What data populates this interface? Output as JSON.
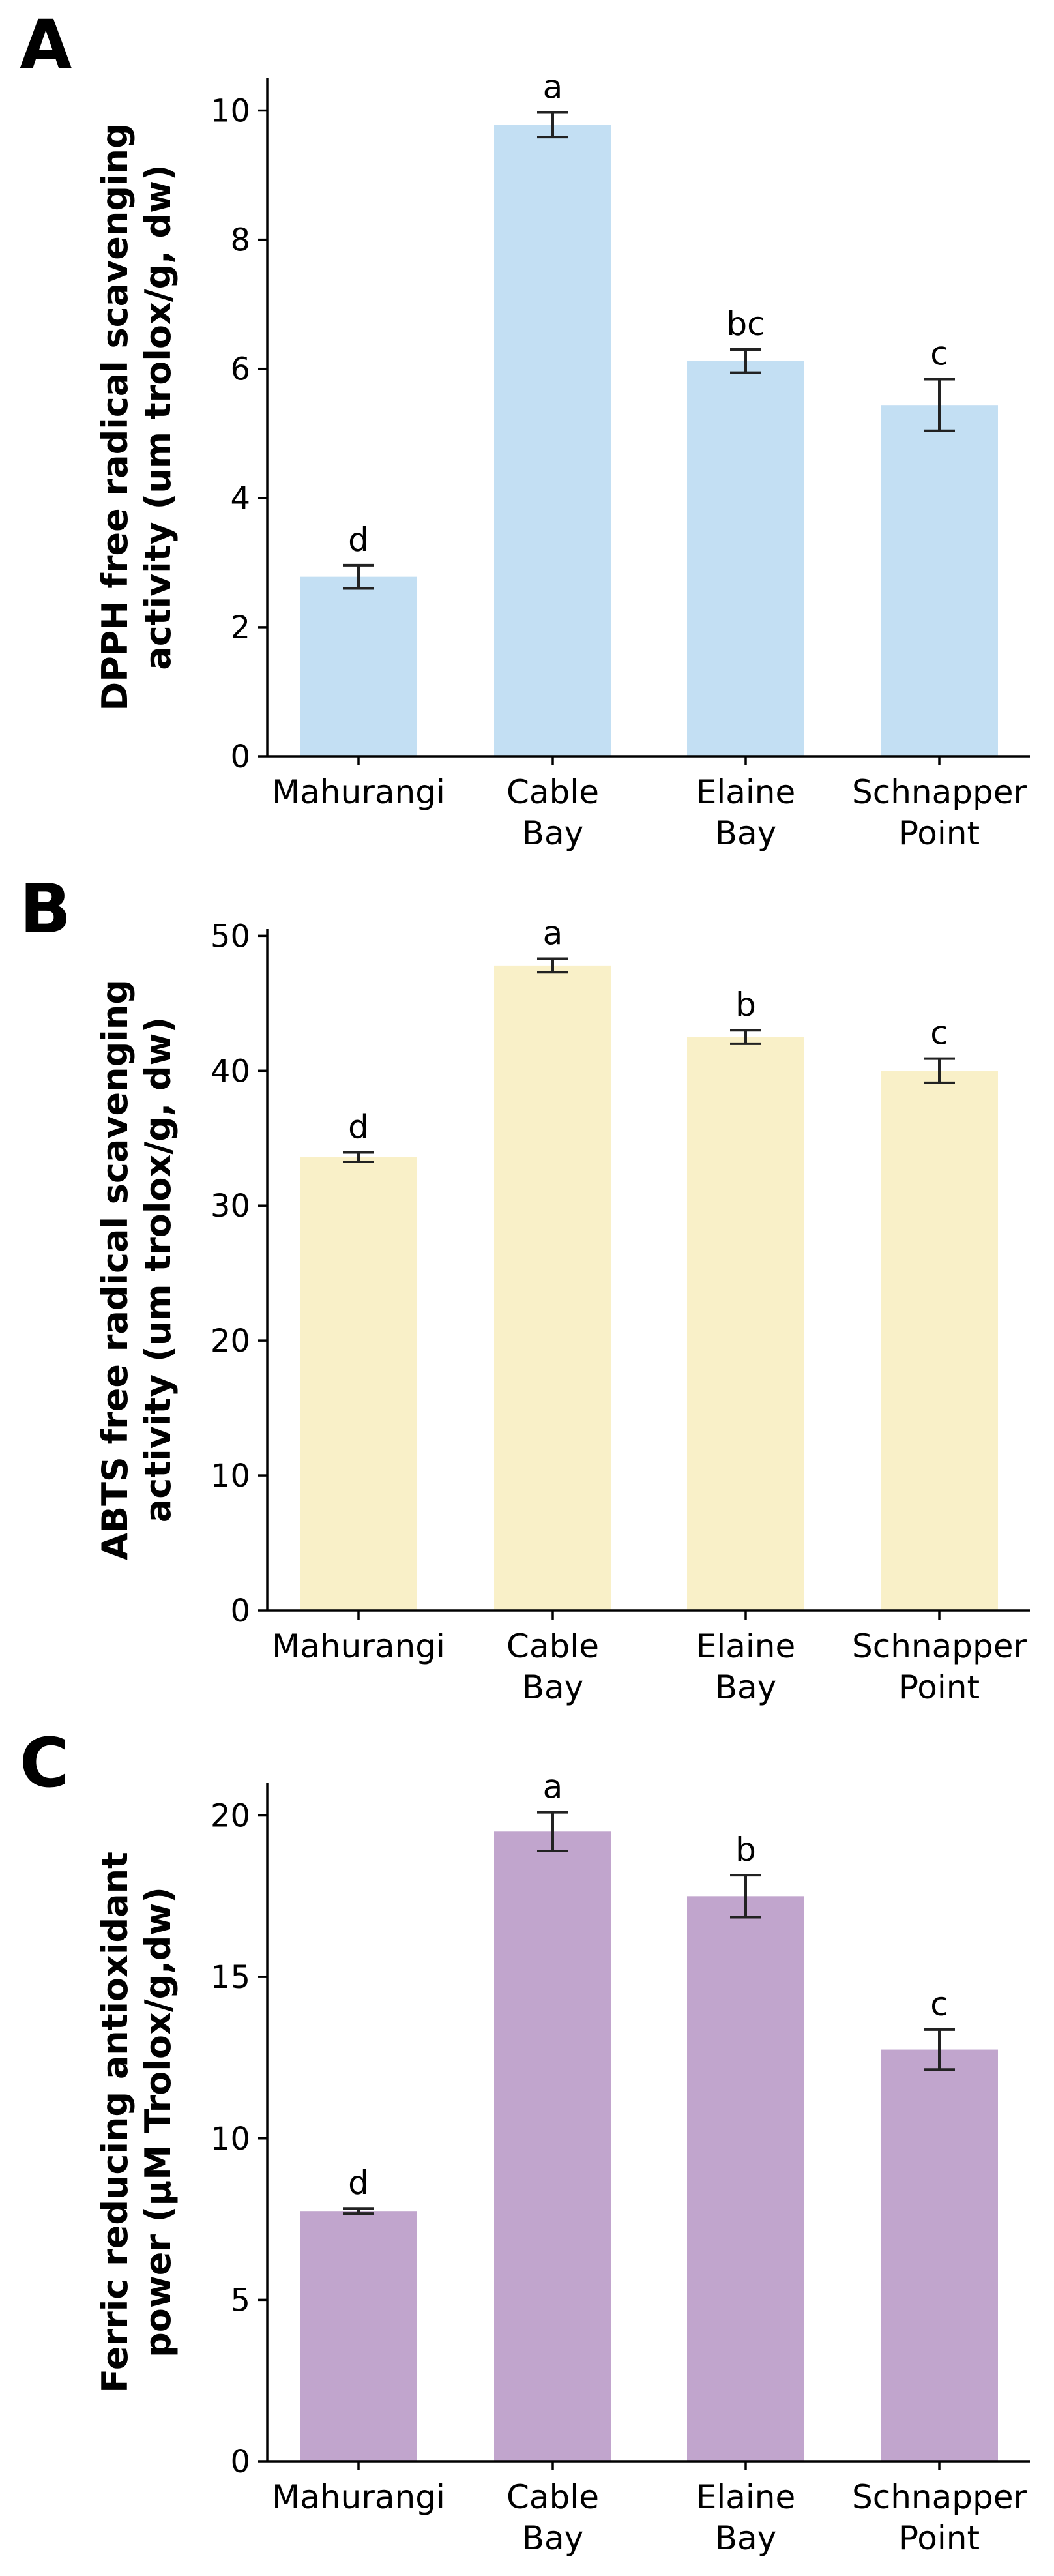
{
  "chart_data": [
    {
      "panel": "A",
      "type": "bar",
      "categories": [
        "Mahurangi",
        "Cable\nBay",
        "Elaine\nBay",
        "Schnapper\nPoint"
      ],
      "values": [
        2.78,
        9.78,
        6.12,
        5.44
      ],
      "errors": [
        0.18,
        0.19,
        0.18,
        0.4
      ],
      "significance": [
        "d",
        "a",
        "bc",
        "c"
      ],
      "ylabel": "DPPH free radical scavenging\nactivity (um trolox/g, dw)",
      "ylim": [
        0,
        10.5
      ],
      "yticks": [
        0,
        2,
        4,
        6,
        8,
        10
      ],
      "color": "#c3dff3",
      "grid": false
    },
    {
      "panel": "B",
      "type": "bar",
      "categories": [
        "Mahurangi",
        "Cable\nBay",
        "Elaine\nBay",
        "Schnapper\nPoint"
      ],
      "values": [
        33.6,
        47.8,
        42.5,
        40.0
      ],
      "errors": [
        0.35,
        0.5,
        0.5,
        0.9
      ],
      "significance": [
        "d",
        "a",
        "b",
        "c"
      ],
      "ylabel": "ABTS free radical scavenging\nactivity (um trolox/g, dw)",
      "ylim": [
        0,
        50.5
      ],
      "yticks": [
        0,
        10,
        20,
        30,
        40,
        50
      ],
      "color": "#f9f0c8",
      "grid": false
    },
    {
      "panel": "C",
      "type": "bar",
      "categories": [
        "Mahurangi",
        "Cable\nBay",
        "Elaine\nBay",
        "Schnapper\nPoint"
      ],
      "values": [
        7.75,
        19.5,
        17.5,
        12.75
      ],
      "errors": [
        0.08,
        0.6,
        0.65,
        0.62
      ],
      "significance": [
        "d",
        "a",
        "b",
        "c"
      ],
      "ylabel": "Ferric reducing antioxidant\npower (µM Trolox/g,dw)",
      "ylim": [
        0,
        21
      ],
      "yticks": [
        0,
        5,
        10,
        15,
        20
      ],
      "color": "#c1a5cd",
      "grid": false
    }
  ]
}
